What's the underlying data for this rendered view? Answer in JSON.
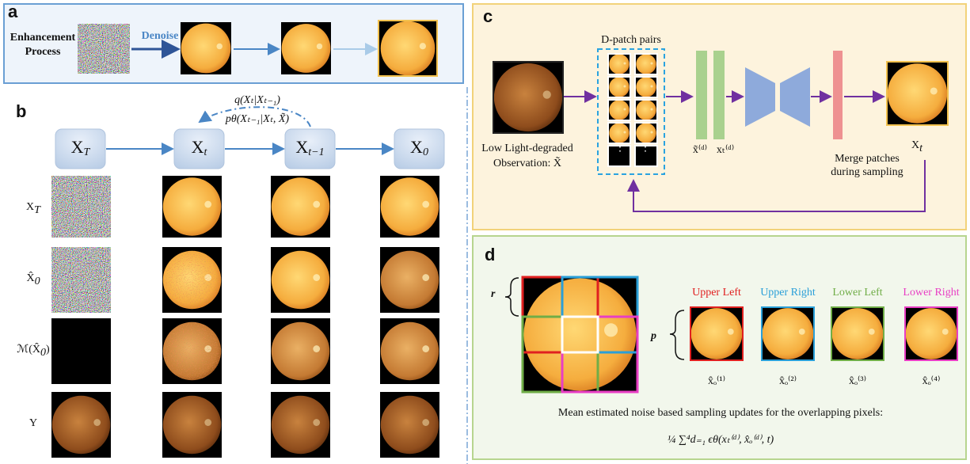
{
  "a": {
    "label": "a",
    "process_label": [
      "Enhancement",
      "Process"
    ],
    "arrow_label": "Denoise"
  },
  "b": {
    "label": "b",
    "nodes": [
      {
        "base": "X",
        "sub": "T"
      },
      {
        "base": "X",
        "sub": "t"
      },
      {
        "base": "X",
        "sub": "t−1"
      },
      {
        "base": "X",
        "sub": "0"
      }
    ],
    "forward_label": "q(Xₜ|Xₜ₋₁)",
    "reverse_label": "pθ(Xₜ₋₁|Xₜ, X̃)",
    "rows": [
      {
        "base": "X",
        "sub": "T"
      },
      {
        "base": "X̂",
        "sub": "0"
      },
      {
        "base": "ℳ(X̂",
        "sub": "0",
        "tail": ")"
      },
      {
        "base": "Y"
      }
    ]
  },
  "c": {
    "label": "c",
    "patch_title": "D-patch pairs",
    "input_label": [
      "Low Light-degraded",
      "Observation: X̃"
    ],
    "feature_labels": [
      "x̃⁽ᵈ⁾",
      "xₜ⁽ᵈ⁾"
    ],
    "ellipsis": "⋮",
    "merge_label": [
      "Merge patches",
      "during sampling"
    ],
    "output_label": {
      "base": "X",
      "sub": "t"
    }
  },
  "d": {
    "label": "d",
    "r": "r",
    "p": "p",
    "patches": [
      {
        "name": "Upper Left",
        "symbol": "x̂ₒ⁽¹⁾"
      },
      {
        "name": "Upper Right",
        "symbol": "x̂ₒ⁽²⁾"
      },
      {
        "name": "Lower Left",
        "symbol": "x̂ₒ⁽³⁾"
      },
      {
        "name": "Lower Right",
        "symbol": "x̂ₒ⁽⁴⁾"
      }
    ],
    "caption": "Mean estimated noise based sampling updates for the overlapping pixels:",
    "formula": "¼ ∑⁴d₌₁ ϵθ(xₜ⁽ᵈ⁾, x̂ₒ⁽ᵈ⁾, t)"
  }
}
